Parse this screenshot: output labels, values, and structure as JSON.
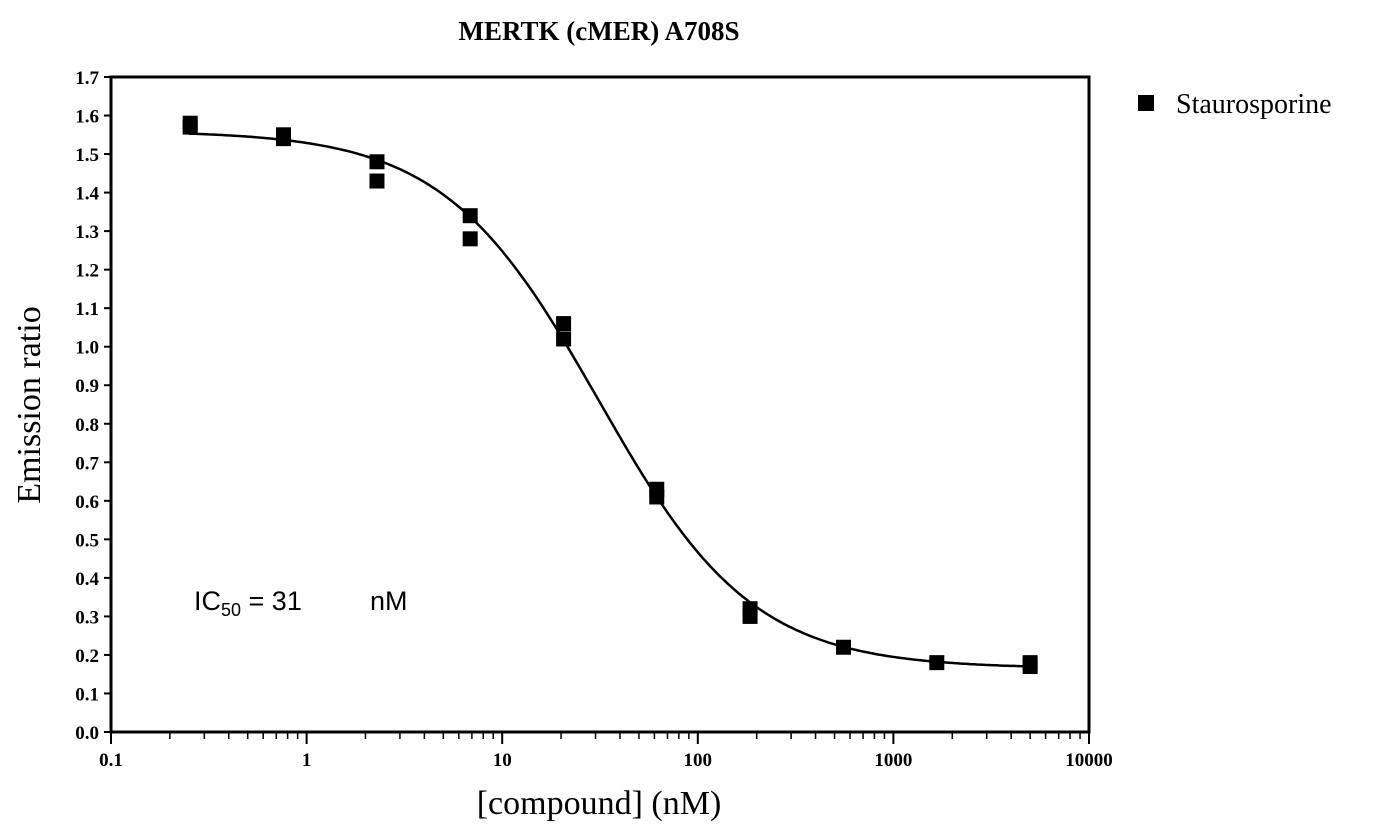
{
  "chart_data": {
    "type": "scatter",
    "title": "MERTK (cMER) A708S",
    "xlabel": "[compound] (nM)",
    "ylabel": "Emission ratio",
    "xscale": "log",
    "xlim": [
      0.1,
      10000
    ],
    "ylim": [
      0.0,
      1.7
    ],
    "x_ticks": [
      0.1,
      1,
      10,
      100,
      1000,
      10000
    ],
    "x_tick_labels": [
      "0.1",
      "1",
      "10",
      "100",
      "1000",
      "10000"
    ],
    "y_ticks": [
      0.0,
      0.1,
      0.2,
      0.3,
      0.4,
      0.5,
      0.6,
      0.7,
      0.8,
      0.9,
      1.0,
      1.1,
      1.2,
      1.3,
      1.4,
      1.5,
      1.6,
      1.7
    ],
    "y_tick_labels": [
      "0.0",
      "0.1",
      "0.2",
      "0.3",
      "0.4",
      "0.5",
      "0.6",
      "0.7",
      "0.8",
      "0.9",
      "1.0",
      "1.1",
      "1.2",
      "1.3",
      "1.4",
      "1.5",
      "1.6",
      "1.7"
    ],
    "grid": false,
    "legend_position": "outside-top-right",
    "series": [
      {
        "name": "Staurosporine",
        "marker": "square",
        "color": "#000000",
        "points": [
          [
            0.254,
            1.58
          ],
          [
            0.254,
            1.57
          ],
          [
            0.762,
            1.55
          ],
          [
            0.762,
            1.54
          ],
          [
            2.29,
            1.48
          ],
          [
            2.29,
            1.43
          ],
          [
            6.86,
            1.34
          ],
          [
            6.86,
            1.28
          ],
          [
            20.6,
            1.06
          ],
          [
            20.6,
            1.02
          ],
          [
            61.7,
            0.63
          ],
          [
            61.7,
            0.61
          ],
          [
            185,
            0.32
          ],
          [
            185,
            0.3
          ],
          [
            556,
            0.22
          ],
          [
            1667,
            0.18
          ],
          [
            5000,
            0.18
          ],
          [
            5000,
            0.17
          ]
        ],
        "fit": {
          "model": "sigmoidal dose-response",
          "top": 1.56,
          "bottom": 0.165,
          "ic50": 31,
          "hill": 1.1
        }
      }
    ],
    "annotation": {
      "prefix": "IC",
      "subscript": "50",
      "equals": " = 31",
      "unit": "nM"
    }
  }
}
